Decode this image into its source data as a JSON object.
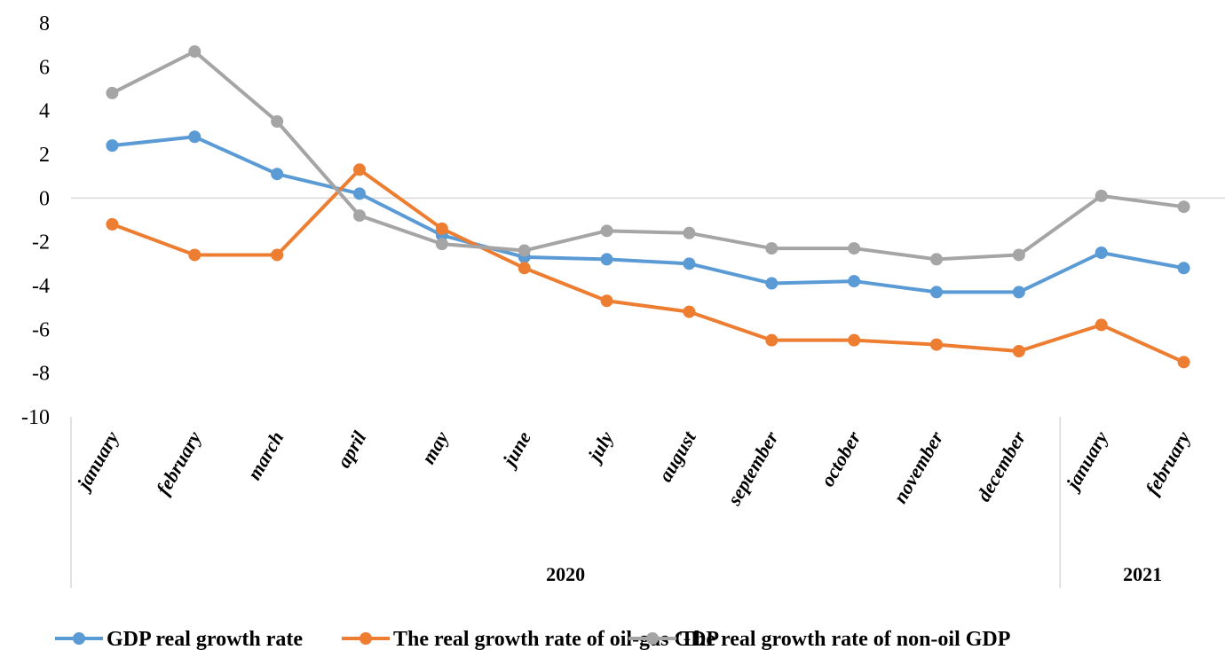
{
  "chart_data": {
    "type": "line",
    "title": "",
    "xlabel": "",
    "ylabel": "",
    "ylim": [
      -10,
      8
    ],
    "yticks": [
      8,
      6,
      4,
      2,
      0,
      -2,
      -4,
      -6,
      -8,
      -10
    ],
    "grid": false,
    "legend_position": "bottom",
    "categories": [
      "january",
      "february",
      "march",
      "april",
      "may",
      "june",
      "july",
      "august",
      "september",
      "october",
      "november",
      "december",
      "january",
      "february"
    ],
    "groups": [
      {
        "label": "2020",
        "count": 12
      },
      {
        "label": "2021",
        "count": 2
      }
    ],
    "series": [
      {
        "name": "GDP real growth rate",
        "color": "#5b9bd5",
        "values": [
          2.4,
          2.8,
          1.1,
          0.2,
          -1.7,
          -2.7,
          -2.8,
          -3.0,
          -3.9,
          -3.8,
          -4.3,
          -4.3,
          -2.5,
          -3.2
        ]
      },
      {
        "name": "The real growth rate of oil-gas GDP",
        "color": "#ed7d31",
        "values": [
          -1.2,
          -2.6,
          -2.6,
          1.3,
          -1.4,
          -3.2,
          -4.7,
          -5.2,
          -6.5,
          -6.5,
          -6.7,
          -7.0,
          -5.8,
          -7.5
        ]
      },
      {
        "name": "The real growth rate of non-oil GDP",
        "color": "#a5a5a5",
        "values": [
          4.8,
          6.7,
          3.5,
          -0.8,
          -2.1,
          -2.4,
          -1.5,
          -1.6,
          -2.3,
          -2.3,
          -2.8,
          -2.6,
          0.1,
          -0.4
        ]
      }
    ]
  }
}
